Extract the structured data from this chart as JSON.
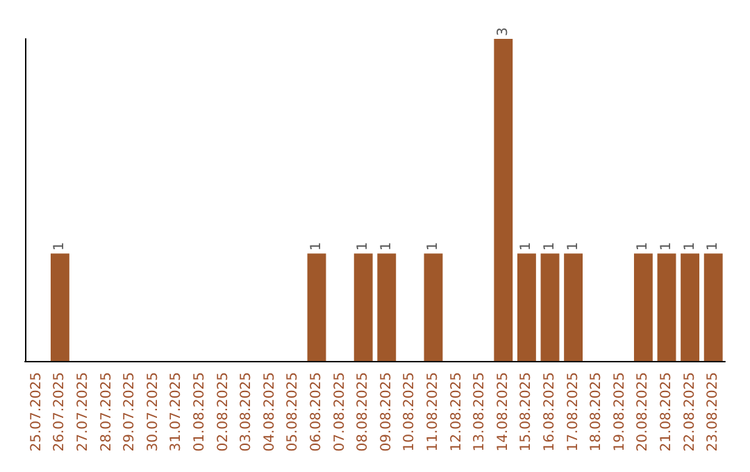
{
  "chart_data": {
    "type": "bar",
    "categories": [
      "25.07.2025",
      "26.07.2025",
      "27.07.2025",
      "28.07.2025",
      "29.07.2025",
      "30.07.2025",
      "31.07.2025",
      "01.08.2025",
      "02.08.2025",
      "03.08.2025",
      "04.08.2025",
      "05.08.2025",
      "06.08.2025",
      "07.08.2025",
      "08.08.2025",
      "09.08.2025",
      "10.08.2025",
      "11.08.2025",
      "12.08.2025",
      "13.08.2025",
      "14.08.2025",
      "15.08.2025",
      "16.08.2025",
      "17.08.2025",
      "18.08.2025",
      "19.08.2025",
      "20.08.2025",
      "21.08.2025",
      "22.08.2025",
      "23.08.2025"
    ],
    "values": [
      0,
      1,
      0,
      0,
      0,
      0,
      0,
      0,
      0,
      0,
      0,
      0,
      1,
      0,
      1,
      1,
      0,
      1,
      0,
      0,
      3,
      1,
      1,
      1,
      0,
      0,
      1,
      1,
      1,
      1
    ],
    "value_labels": [
      null,
      "1",
      null,
      null,
      null,
      null,
      null,
      null,
      null,
      null,
      null,
      null,
      "1",
      null,
      "1",
      "1",
      null,
      "1",
      null,
      null,
      "3",
      "1",
      "1",
      "1",
      null,
      null,
      "1",
      "1",
      "1",
      "1"
    ],
    "color": "#a0582a",
    "tick_labels": "x"
  }
}
